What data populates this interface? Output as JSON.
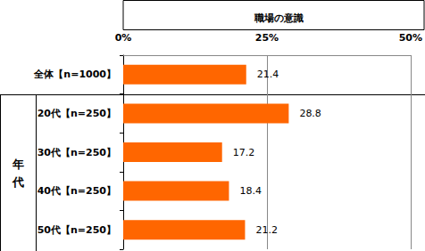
{
  "chart_data": {
    "type": "bar",
    "orientation": "horizontal",
    "title": "職場の意識",
    "categories": [
      "全体【n=1000】",
      "20代【n=250】",
      "30代【n=250】",
      "40代【n=250】",
      "50代【n=250】"
    ],
    "values": [
      21.4,
      28.8,
      17.2,
      18.4,
      21.2
    ],
    "color": "#ff6600",
    "xlim": [
      0,
      50
    ],
    "xticks": [
      {
        "value": 0,
        "label": "0%"
      },
      {
        "value": 25,
        "label": "25%"
      },
      {
        "value": 50,
        "label": "50%"
      }
    ],
    "grid": true,
    "data_labels": true,
    "annotations": [
      "年代"
    ]
  }
}
